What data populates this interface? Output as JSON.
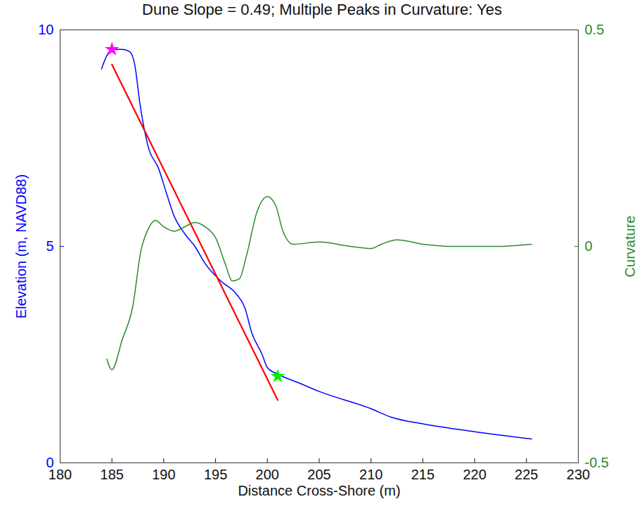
{
  "chart_data": {
    "type": "line",
    "title": "Dune Slope = 0.49; Multiple Peaks in Curvature: Yes",
    "x_label": "Distance Cross-Shore (m)",
    "y_label": "Elevation (m, NAVD88)",
    "y2_label": "Curvature",
    "xlim": [
      180,
      230
    ],
    "xticks": [
      180,
      185,
      190,
      195,
      200,
      205,
      210,
      215,
      220,
      225,
      230
    ],
    "ylim": [
      0,
      10
    ],
    "yticks": [
      0,
      5,
      10
    ],
    "y2lim": [
      -0.5,
      0.5
    ],
    "y2ticks": [
      -0.5,
      0,
      0.5
    ],
    "grid": false,
    "series": [
      {
        "type": "line",
        "color": "#0000ff",
        "line_style": "solid",
        "x": [
          184,
          184.5,
          185,
          186,
          186.7,
          187.2,
          187.7,
          188.5,
          189.5,
          190.3,
          191,
          192,
          193,
          194,
          195.5,
          197,
          197.8,
          198.5,
          199.5,
          200,
          201,
          203,
          205,
          210,
          212,
          215,
          220,
          225.5
        ],
        "values": [
          9.1,
          9.4,
          9.55,
          9.55,
          9.5,
          9.2,
          8.3,
          7.3,
          6.8,
          6.2,
          5.7,
          5.3,
          5.0,
          4.6,
          4.2,
          3.9,
          3.6,
          3.0,
          2.5,
          2.2,
          2.05,
          1.85,
          1.65,
          1.25,
          1.05,
          0.9,
          0.72,
          0.55
        ]
      },
      {
        "type": "line",
        "color": "#ff0000",
        "line_style": "solid",
        "x": [
          185,
          201
        ],
        "values": [
          9.2,
          1.45
        ]
      },
      {
        "type": "line",
        "color": "#2e8b2e",
        "line_style": "solid",
        "axis": "y2",
        "x": [
          184.5,
          185,
          186,
          187,
          187.8,
          188.5,
          189.2,
          190,
          191,
          192,
          193,
          194,
          195,
          196,
          196.6,
          197.3,
          198,
          199,
          200,
          200.8,
          201.5,
          202.5,
          205,
          208,
          210,
          211,
          212.5,
          215,
          218,
          222,
          225.5
        ],
        "values": [
          -0.26,
          -0.285,
          -0.215,
          -0.14,
          -0.01,
          0.04,
          0.06,
          0.045,
          0.035,
          0.045,
          0.055,
          0.045,
          0.02,
          -0.045,
          -0.08,
          -0.075,
          -0.02,
          0.08,
          0.115,
          0.095,
          0.035,
          0.005,
          0.01,
          0,
          -0.005,
          0.005,
          0.015,
          0.005,
          0,
          0,
          0.005
        ]
      },
      {
        "type": "scatter",
        "color": "#ff00ff",
        "marker": "star",
        "x": [
          185
        ],
        "values": [
          9.55
        ]
      },
      {
        "type": "scatter",
        "color": "#00ee00",
        "marker": "star",
        "x": [
          201
        ],
        "values": [
          2.0
        ]
      }
    ]
  }
}
